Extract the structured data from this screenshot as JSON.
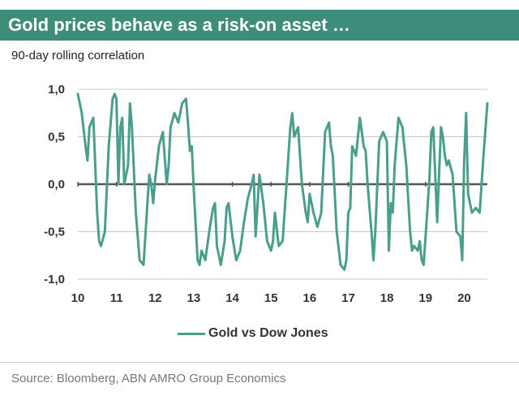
{
  "header": {
    "title": "Gold prices behave as a risk-on asset …",
    "subtitle": "90-day rolling correlation"
  },
  "footer": {
    "source": "Source: Bloomberg, ABN AMRO Group Economics"
  },
  "colors": {
    "title_bg": "#3e8c7a",
    "line": "#4a9e8c",
    "zero_line": "#555555",
    "grid": "#c8c8c8"
  },
  "chart_data": {
    "type": "line",
    "title": "Gold prices behave as a risk-on asset …",
    "subtitle": "90-day rolling correlation",
    "xlabel": "",
    "ylabel": "",
    "xlim": [
      10,
      20.6
    ],
    "ylim": [
      -1.0,
      1.0
    ],
    "x_ticks": [
      10,
      11,
      12,
      13,
      14,
      15,
      16,
      17,
      18,
      19,
      20
    ],
    "x_tick_labels": [
      "10",
      "11",
      "12",
      "13",
      "14",
      "15",
      "16",
      "17",
      "18",
      "19",
      "20"
    ],
    "y_ticks": [
      1.0,
      0.5,
      0.0,
      -0.5,
      -1.0
    ],
    "y_tick_labels": [
      "1,0",
      "0,5",
      "0,0",
      "-0,5",
      "-1,0"
    ],
    "grid": true,
    "legend_position": "bottom-center",
    "series": [
      {
        "name": "Gold vs Dow Jones",
        "x": [
          10.0,
          10.1,
          10.2,
          10.25,
          10.3,
          10.4,
          10.5,
          10.55,
          10.6,
          10.7,
          10.8,
          10.9,
          10.95,
          11.0,
          11.05,
          11.1,
          11.15,
          11.2,
          11.3,
          11.35,
          11.4,
          11.5,
          11.6,
          11.7,
          11.8,
          11.85,
          11.9,
          11.95,
          12.0,
          12.1,
          12.2,
          12.3,
          12.35,
          12.4,
          12.5,
          12.6,
          12.7,
          12.8,
          12.85,
          12.9,
          12.95,
          13.0,
          13.1,
          13.15,
          13.2,
          13.3,
          13.4,
          13.5,
          13.55,
          13.6,
          13.7,
          13.8,
          13.85,
          13.9,
          14.0,
          14.1,
          14.2,
          14.3,
          14.4,
          14.5,
          14.55,
          14.6,
          14.7,
          14.8,
          14.9,
          15.0,
          15.05,
          15.1,
          15.2,
          15.3,
          15.4,
          15.5,
          15.55,
          15.6,
          15.7,
          15.8,
          15.9,
          15.95,
          16.0,
          16.1,
          16.2,
          16.3,
          16.4,
          16.5,
          16.55,
          16.6,
          16.7,
          16.8,
          16.9,
          16.95,
          17.0,
          17.05,
          17.1,
          17.2,
          17.3,
          17.4,
          17.45,
          17.5,
          17.6,
          17.65,
          17.7,
          17.8,
          17.9,
          18.0,
          18.05,
          18.1,
          18.15,
          18.2,
          18.3,
          18.4,
          18.5,
          18.6,
          18.65,
          18.7,
          18.8,
          18.85,
          18.9,
          18.95,
          19.0,
          19.1,
          19.15,
          19.2,
          19.3,
          19.4,
          19.45,
          19.5,
          19.55,
          19.6,
          19.7,
          19.8,
          19.9,
          19.95,
          20.0,
          20.05,
          20.1,
          20.2,
          20.3,
          20.4,
          20.5,
          20.6
        ],
        "y": [
          0.95,
          0.75,
          0.4,
          0.25,
          0.6,
          0.7,
          -0.3,
          -0.6,
          -0.65,
          -0.5,
          0.4,
          0.9,
          0.95,
          0.9,
          0.0,
          0.6,
          0.7,
          0.0,
          0.2,
          0.85,
          0.6,
          -0.3,
          -0.8,
          -0.85,
          -0.2,
          0.1,
          0.0,
          -0.2,
          0.05,
          0.4,
          0.55,
          0.0,
          0.2,
          0.6,
          0.75,
          0.65,
          0.85,
          0.9,
          0.65,
          0.35,
          0.4,
          -0.05,
          -0.8,
          -0.85,
          -0.7,
          -0.8,
          -0.5,
          -0.25,
          -0.2,
          -0.65,
          -0.85,
          -0.6,
          -0.25,
          -0.2,
          -0.55,
          -0.8,
          -0.7,
          -0.4,
          -0.15,
          0.0,
          0.1,
          -0.55,
          0.1,
          -0.2,
          -0.6,
          -0.7,
          -0.6,
          -0.3,
          -0.65,
          -0.6,
          0.0,
          0.6,
          0.75,
          0.5,
          0.6,
          0.0,
          -0.3,
          -0.4,
          -0.1,
          -0.3,
          -0.45,
          -0.3,
          0.55,
          0.65,
          0.4,
          0.3,
          -0.5,
          -0.85,
          -0.9,
          -0.8,
          -0.3,
          -0.25,
          0.4,
          0.3,
          0.7,
          0.4,
          0.35,
          0.0,
          -0.5,
          -0.8,
          -0.5,
          0.45,
          0.55,
          0.45,
          -0.7,
          -0.2,
          -0.3,
          0.2,
          0.7,
          0.6,
          0.2,
          -0.5,
          -0.7,
          -0.65,
          -0.7,
          -0.6,
          -0.8,
          -0.85,
          -0.55,
          0.05,
          0.55,
          0.6,
          -0.4,
          0.6,
          0.5,
          0.3,
          0.2,
          0.25,
          0.1,
          -0.5,
          -0.55,
          -0.8,
          0.25,
          0.75,
          -0.1,
          -0.3,
          -0.25,
          -0.3,
          0.3,
          0.85
        ]
      }
    ]
  }
}
